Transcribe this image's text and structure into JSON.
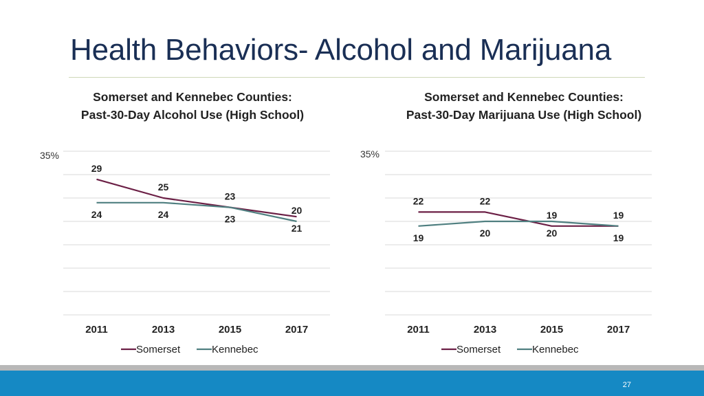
{
  "slide": {
    "title": "Health Behaviors- Alcohol and Marijuana",
    "page_number": "27"
  },
  "colors": {
    "somerset": "#6b1f45",
    "kennebec": "#4f7f80",
    "footer_bar": "#1589c4",
    "footer_stripe": "#b8b8b8",
    "title": "#1a2f55"
  },
  "chart_data": [
    {
      "type": "line",
      "title": "Somerset and Kennebec Counties:\nPast-30-Day Alcohol Use (High School)",
      "title_lines": [
        "Somerset and Kennebec Counties:",
        "Past-30-Day Alcohol Use (High School)"
      ],
      "categories": [
        "2011",
        "2013",
        "2015",
        "2017"
      ],
      "series": [
        {
          "name": "Somerset",
          "values": [
            29,
            25,
            23,
            21
          ],
          "labels": [
            "29",
            "25",
            "23",
            "21"
          ],
          "label_pos": [
            "above",
            "above",
            "above",
            "below"
          ]
        },
        {
          "name": "Kennebec",
          "values": [
            24,
            24,
            23,
            20
          ],
          "labels": [
            "24",
            "24",
            "23",
            "20"
          ],
          "label_pos": [
            "below",
            "below",
            "below",
            "above"
          ]
        }
      ],
      "ylim": [
        0,
        35
      ],
      "ymax_label": "35%",
      "grid": true,
      "legend": "bottom"
    },
    {
      "type": "line",
      "title": "Somerset and Kennebec Counties:\nPast-30-Day Marijuana Use (High School)",
      "title_lines": [
        "Somerset and Kennebec Counties:",
        "Past-30-Day Marijuana Use (High School)"
      ],
      "categories": [
        "2011",
        "2013",
        "2015",
        "2017"
      ],
      "series": [
        {
          "name": "Somerset",
          "values": [
            22,
            22,
            19,
            19
          ],
          "labels": [
            "22",
            "22",
            "19",
            "19"
          ],
          "label_pos": [
            "above",
            "above",
            "above",
            "above"
          ]
        },
        {
          "name": "Kennebec",
          "values": [
            19,
            20,
            20,
            19
          ],
          "labels": [
            "19",
            "20",
            "20",
            "19"
          ],
          "label_pos": [
            "below",
            "below",
            "below",
            "below"
          ]
        }
      ],
      "ylim": [
        0,
        35
      ],
      "ymax_label": "35%",
      "grid": true,
      "legend": "bottom"
    }
  ]
}
